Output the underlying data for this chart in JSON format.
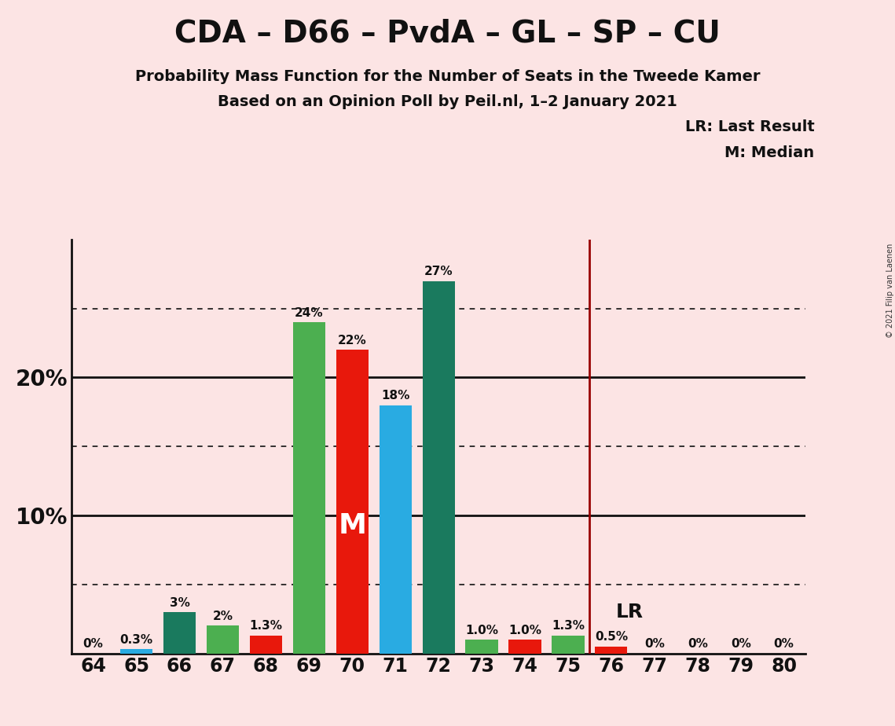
{
  "title": "CDA – D66 – PvdA – GL – SP – CU",
  "subtitle1": "Probability Mass Function for the Number of Seats in the Tweede Kamer",
  "subtitle2": "Based on an Opinion Poll by Peil.nl, 1–2 January 2021",
  "copyright": "© 2021 Filip van Laenen",
  "background_color": "#fce4e4",
  "seats": [
    64,
    65,
    66,
    67,
    68,
    69,
    70,
    71,
    72,
    73,
    74,
    75,
    76,
    77,
    78,
    79,
    80
  ],
  "values": [
    0.0,
    0.3,
    3.0,
    2.0,
    1.3,
    24.0,
    22.0,
    18.0,
    27.0,
    1.0,
    1.0,
    1.3,
    0.5,
    0.0,
    0.0,
    0.0,
    0.0
  ],
  "colors": [
    "#1a7a5e",
    "#29abe2",
    "#1a7a5e",
    "#4caf50",
    "#e8180c",
    "#4caf50",
    "#e8180c",
    "#29abe2",
    "#1a7a5e",
    "#4caf50",
    "#e8180c",
    "#4caf50",
    "#e8180c",
    "#4caf50",
    "#4caf50",
    "#4caf50",
    "#4caf50"
  ],
  "labels": [
    "0%",
    "0.3%",
    "3%",
    "2%",
    "1.3%",
    "24%",
    "22%",
    "18%",
    "27%",
    "1.0%",
    "1.0%",
    "1.3%",
    "0.5%",
    "0%",
    "0%",
    "0%",
    "0%"
  ],
  "lr_line_x": 75.5,
  "median_bar": 70,
  "ylim": [
    0,
    30
  ],
  "yticks": [
    0,
    5,
    10,
    15,
    20,
    25,
    30
  ],
  "dotted_lines": [
    5.0,
    15.0,
    25.0
  ],
  "solid_lines": [
    10.0,
    20.0
  ],
  "grid_color": "#111111",
  "lr_color": "#990000",
  "bar_width": 0.75,
  "xlim_left": 63.5,
  "xlim_right": 80.5
}
